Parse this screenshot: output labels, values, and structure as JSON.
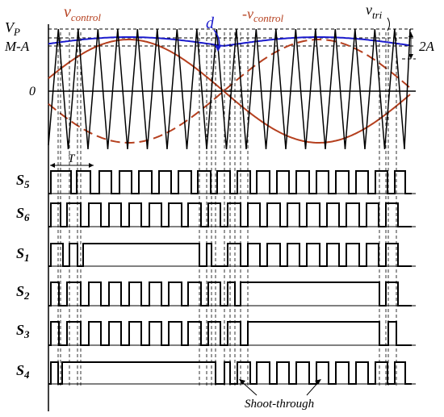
{
  "labels": {
    "vp": "V",
    "vp_sub": "P",
    "ma": "M-A",
    "zero": "0",
    "vcontrol": "v",
    "vcontrol_sub": "control",
    "neg_vcontrol": "-v",
    "neg_vcontrol_sub": "control",
    "d": "d",
    "vtri": "v",
    "vtri_sub": "tri",
    "two_a": "2A",
    "period": "T",
    "shoot_through": "Shoot-through"
  },
  "switches": [
    {
      "name": "S",
      "sub": "5"
    },
    {
      "name": "S",
      "sub": "6"
    },
    {
      "name": "S",
      "sub": "1"
    },
    {
      "name": "S",
      "sub": "2"
    },
    {
      "name": "S",
      "sub": "3"
    },
    {
      "name": "S",
      "sub": "4"
    }
  ],
  "colors": {
    "vcontrol": "#b5401f",
    "neg_vcontrol": "#b5401f",
    "d": "#1a1acc",
    "vtri": "#000000",
    "dashed": "#000000"
  }
}
